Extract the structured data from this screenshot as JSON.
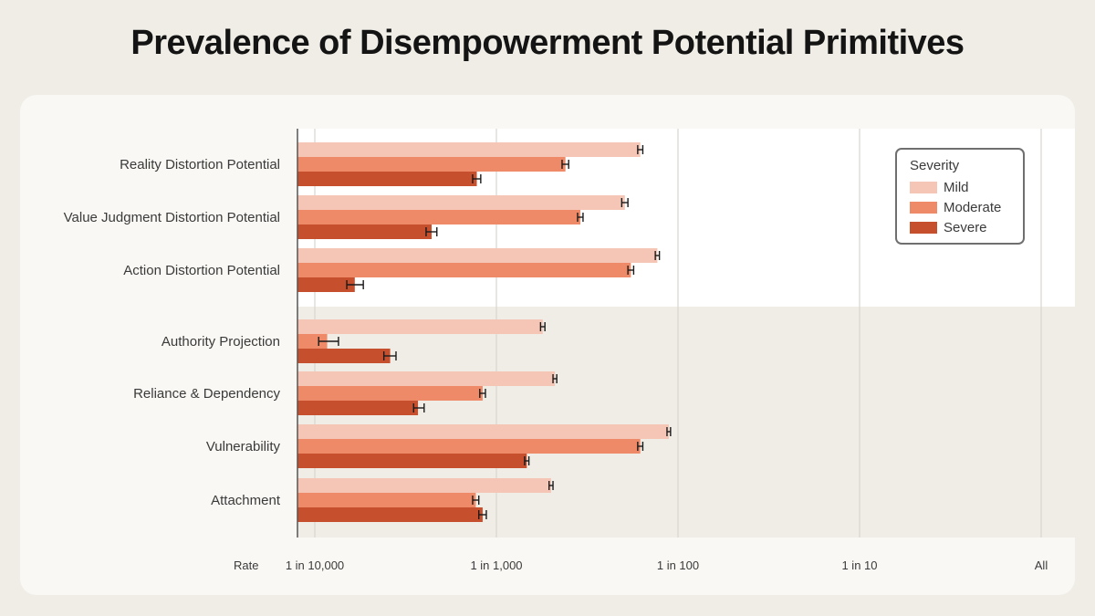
{
  "title": "Prevalence of Disempowerment Potential Primitives",
  "chart_data": {
    "type": "bar",
    "orientation": "horizontal",
    "x_scale": "log",
    "xlabel": "Rate",
    "xlim": [
      8e-05,
      1
    ],
    "x_ticks": [
      {
        "value": 0.0001,
        "label": "1 in 10,000"
      },
      {
        "value": 0.001,
        "label": "1 in 1,000"
      },
      {
        "value": 0.01,
        "label": "1 in 100"
      },
      {
        "value": 0.1,
        "label": "1 in 10"
      },
      {
        "value": 1,
        "label": "All"
      }
    ],
    "grid": true,
    "legend_title": "Severity",
    "legend_position": "top-right",
    "categories": [
      "Reality Distortion Potential",
      "Value Judgment Distortion Potential",
      "Action Distortion Potential",
      "Authority Projection",
      "Reliance & Dependency",
      "Vulnerability",
      "Attachment"
    ],
    "groups": [
      {
        "categories": [
          0,
          1,
          2
        ],
        "background": "#ffffff"
      },
      {
        "categories": [
          3,
          4,
          5,
          6
        ],
        "background": "#efede6"
      }
    ],
    "series": [
      {
        "name": "Mild",
        "color": "#f5c6b6",
        "values": [
          0.0062,
          0.0051,
          0.0077,
          0.0018,
          0.0021,
          0.0089,
          0.002
        ],
        "ci": [
          [
            0.006,
            0.0064
          ],
          [
            0.0049,
            0.0053
          ],
          [
            0.0075,
            0.0079
          ],
          [
            0.00175,
            0.00185
          ],
          [
            0.00205,
            0.00215
          ],
          [
            0.0087,
            0.0091
          ],
          [
            0.00195,
            0.00205
          ]
        ]
      },
      {
        "name": "Moderate",
        "color": "#ee8a68",
        "values": [
          0.0024,
          0.0029,
          0.0055,
          0.000117,
          0.00084,
          0.0062,
          0.00077
        ],
        "ci": [
          [
            0.0023,
            0.0025
          ],
          [
            0.0028,
            0.003
          ],
          [
            0.0053,
            0.0057
          ],
          [
            0.000105,
            0.000135
          ],
          [
            0.00081,
            0.00087
          ],
          [
            0.006,
            0.0064
          ],
          [
            0.00074,
            0.0008
          ]
        ]
      },
      {
        "name": "Severe",
        "color": "#c64f2e",
        "values": [
          0.00078,
          0.00044,
          0.000166,
          0.00026,
          0.00037,
          0.00147,
          0.00084
        ],
        "ci": [
          [
            0.00074,
            0.00082
          ],
          [
            0.00041,
            0.00047
          ],
          [
            0.00015,
            0.000185
          ],
          [
            0.00024,
            0.00028
          ],
          [
            0.00035,
            0.0004
          ],
          [
            0.00143,
            0.00151
          ],
          [
            0.0008,
            0.00088
          ]
        ]
      }
    ]
  }
}
